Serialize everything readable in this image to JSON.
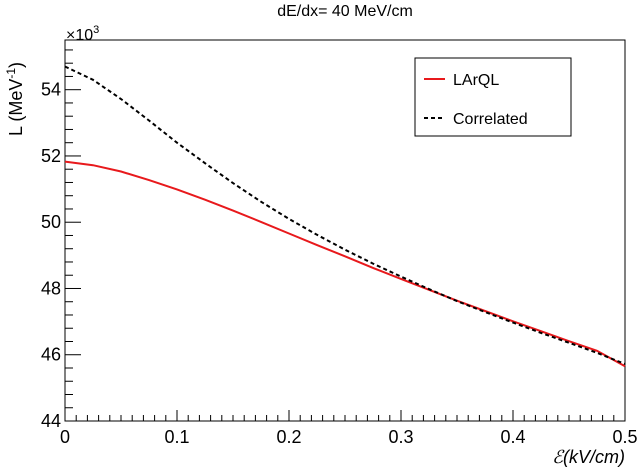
{
  "chart_data": {
    "type": "line",
    "title": "dE/dx= 40 MeV/cm",
    "xlabel": "ℰ(kV/cm)",
    "ylabel": "L (MeV",
    "ylabel_sup": "-1",
    "ylabel_close": ")",
    "y_multiplier_base": "×10",
    "y_multiplier_exp": "3",
    "xlim": [
      0,
      0.5
    ],
    "ylim": [
      44,
      55.5
    ],
    "x_ticks": [
      0,
      0.1,
      0.2,
      0.3,
      0.4,
      0.5
    ],
    "x_tick_labels": [
      "0",
      "0.1",
      "0.2",
      "0.3",
      "0.4",
      "0.5"
    ],
    "y_ticks": [
      44,
      46,
      48,
      50,
      52,
      54
    ],
    "y_tick_labels": [
      "44",
      "46",
      "48",
      "50",
      "52",
      "54"
    ],
    "grid": false,
    "legend_position": "top-right",
    "series": [
      {
        "name": "LArQL",
        "color": "#e8191c",
        "style": "solid",
        "x": [
          0,
          0.025,
          0.05,
          0.075,
          0.1,
          0.125,
          0.15,
          0.175,
          0.2,
          0.225,
          0.25,
          0.275,
          0.3,
          0.325,
          0.35,
          0.375,
          0.4,
          0.425,
          0.45,
          0.475,
          0.5
        ],
        "y": [
          51.83,
          51.72,
          51.53,
          51.27,
          50.99,
          50.68,
          50.35,
          50.01,
          49.66,
          49.31,
          48.97,
          48.62,
          48.29,
          47.96,
          47.63,
          47.32,
          47.01,
          46.71,
          46.41,
          46.12,
          45.65
        ]
      },
      {
        "name": "Correlated",
        "color": "#000000",
        "style": "dashed",
        "x": [
          0,
          0.025,
          0.05,
          0.075,
          0.1,
          0.125,
          0.15,
          0.175,
          0.2,
          0.225,
          0.25,
          0.275,
          0.3,
          0.325,
          0.35,
          0.375,
          0.4,
          0.425,
          0.45,
          0.475,
          0.5
        ],
        "y": [
          54.7,
          54.3,
          53.72,
          53.07,
          52.4,
          51.78,
          51.18,
          50.62,
          50.1,
          49.62,
          49.17,
          48.75,
          48.36,
          47.98,
          47.62,
          47.29,
          46.97,
          46.66,
          46.36,
          46.06,
          45.72
        ]
      }
    ]
  }
}
